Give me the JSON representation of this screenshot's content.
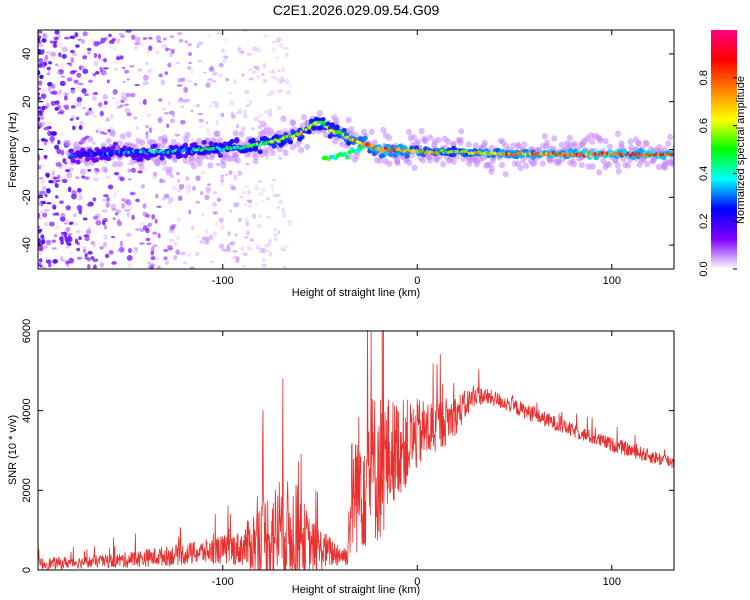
{
  "figure_title": "C2E1.2026.029.09.54.G09",
  "chart_data": [
    {
      "type": "heatmap",
      "name": "spectrogram",
      "xlabel": "Height of straight line (km)",
      "ylabel": "Frequency (Hz)",
      "xlim": [
        -195,
        132
      ],
      "ylim": [
        -50,
        50
      ],
      "xticks": [
        -100,
        0,
        100
      ],
      "yticks": [
        -40,
        -20,
        0,
        20,
        40
      ],
      "colorbar": {
        "label": "Normalized spectral amplitude",
        "range": [
          0,
          1
        ],
        "ticks": [
          0.0,
          0.2,
          0.4,
          0.6,
          0.8
        ],
        "colors": [
          "#ffffff",
          "#8000ff",
          "#0000ff",
          "#00ffff",
          "#00ff00",
          "#ffff00",
          "#ff8000",
          "#ff0000",
          "#ff0080"
        ]
      },
      "ridge": {
        "x": [
          -170,
          -150,
          -130,
          -110,
          -90,
          -75,
          -60,
          -50,
          -45,
          -40,
          -30,
          -20,
          -10,
          0,
          20,
          50,
          90,
          132
        ],
        "frequency": [
          -2,
          -1,
          -1,
          0,
          1,
          3,
          7,
          12,
          8,
          7,
          3,
          0,
          0,
          -1,
          -1,
          -2,
          -2,
          -2
        ],
        "amplitude": [
          0.25,
          0.3,
          0.35,
          0.4,
          0.45,
          0.55,
          0.6,
          0.55,
          0.55,
          0.6,
          0.7,
          0.8,
          0.75,
          0.65,
          0.6,
          0.75,
          0.8,
          0.8
        ]
      }
    },
    {
      "type": "line",
      "name": "snr",
      "xlabel": "Height of straight line (km)",
      "ylabel": "SNR (10 * v/v)",
      "xlim": [
        -195,
        132
      ],
      "ylim": [
        0,
        6000
      ],
      "xticks": [
        -100,
        0,
        100
      ],
      "yticks": [
        0,
        2000,
        4000,
        6000
      ],
      "color": "#e8312f",
      "envelope": {
        "x": [
          -195,
          -170,
          -150,
          -130,
          -110,
          -90,
          -80,
          -70,
          -62,
          -55,
          -45,
          -36,
          -34,
          -30,
          -25,
          -18,
          -12,
          -5,
          0,
          10,
          20,
          30,
          40,
          60,
          80,
          100,
          120,
          132
        ],
        "mean": [
          150,
          200,
          250,
          350,
          450,
          550,
          800,
          1000,
          900,
          600,
          450,
          350,
          1800,
          2200,
          2500,
          2600,
          3000,
          3200,
          3400,
          3600,
          3900,
          4400,
          4300,
          3900,
          3500,
          3150,
          2850,
          2700
        ],
        "spread": [
          150,
          150,
          200,
          250,
          300,
          450,
          1100,
          1300,
          1300,
          700,
          400,
          250,
          1500,
          1800,
          2000,
          1900,
          1300,
          1100,
          900,
          700,
          500,
          250,
          200,
          200,
          180,
          180,
          180,
          180
        ]
      }
    }
  ]
}
